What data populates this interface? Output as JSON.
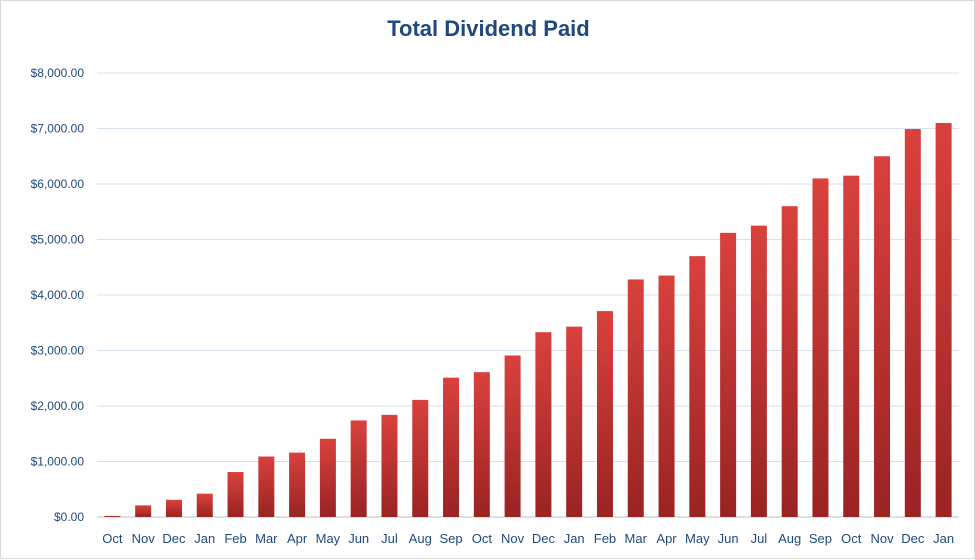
{
  "chart_data": {
    "type": "bar",
    "title": "Total Dividend Paid",
    "xlabel": "",
    "ylabel": "",
    "ylim": [
      0,
      8000
    ],
    "y_ticks": [
      "$0.00",
      "$1,000.00",
      "$2,000.00",
      "$3,000.00",
      "$4,000.00",
      "$5,000.00",
      "$6,000.00",
      "$7,000.00",
      "$8,000.00"
    ],
    "grid": true,
    "legend": "none",
    "bar_color_top": "#d9413d",
    "bar_color_bottom": "#9a2323",
    "categories": [
      "Oct",
      "Nov",
      "Dec",
      "Jan",
      "Feb",
      "Mar",
      "Apr",
      "May",
      "Jun",
      "Jul",
      "Aug",
      "Sep",
      "Oct",
      "Nov",
      "Dec",
      "Jan",
      "Feb",
      "Mar",
      "Apr",
      "May",
      "Jun",
      "Jul",
      "Aug",
      "Sep",
      "Oct",
      "Nov",
      "Dec",
      "Jan"
    ],
    "values": [
      20,
      210,
      310,
      420,
      810,
      1090,
      1160,
      1410,
      1740,
      1840,
      2110,
      2510,
      2610,
      2910,
      3330,
      3430,
      3710,
      4280,
      4350,
      4700,
      5120,
      5250,
      5600,
      6100,
      6150,
      6500,
      6990,
      7100
    ]
  }
}
